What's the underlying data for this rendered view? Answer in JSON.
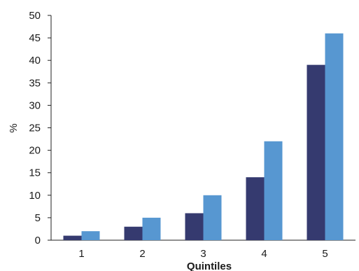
{
  "chart_data": {
    "type": "bar",
    "title": "",
    "xlabel": "Quintiles",
    "ylabel": "%",
    "categories": [
      "1",
      "2",
      "3",
      "4",
      "5"
    ],
    "ylim": [
      0,
      50
    ],
    "yticks": [
      0,
      5,
      10,
      15,
      20,
      25,
      30,
      35,
      40,
      45,
      50
    ],
    "grid": false,
    "legend": "none",
    "series": [
      {
        "color": "#353a6f",
        "values": [
          1,
          3,
          6,
          14,
          39
        ]
      },
      {
        "color": "#5797d1",
        "values": [
          2,
          5,
          10,
          22,
          46
        ]
      }
    ]
  }
}
